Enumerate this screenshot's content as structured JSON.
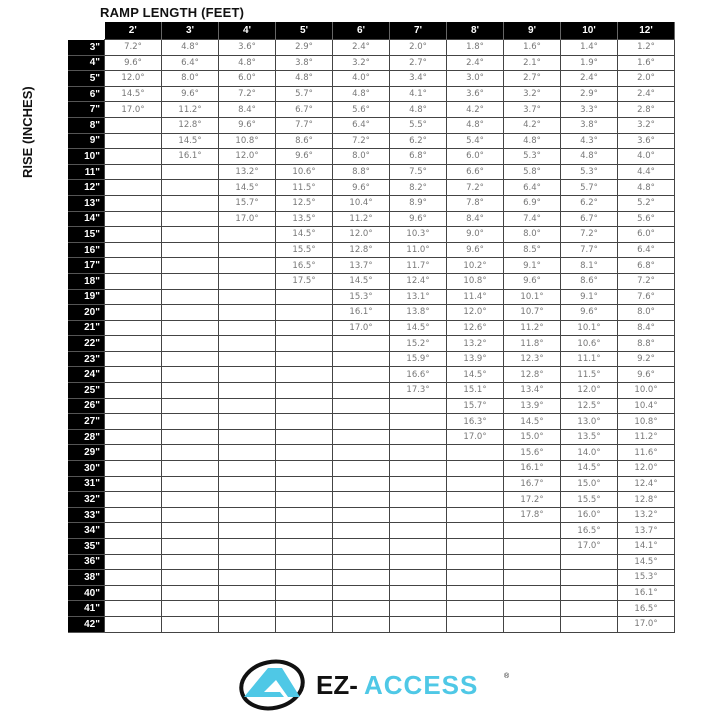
{
  "title": "RAMP LENGTH (FEET)",
  "ylabel": "RISE (INCHES)",
  "columns": [
    "2'",
    "3'",
    "4'",
    "5'",
    "6'",
    "7'",
    "8'",
    "9'",
    "10'",
    "12'"
  ],
  "rows": [
    "3\"",
    "4\"",
    "5\"",
    "6\"",
    "7\"",
    "8\"",
    "9\"",
    "10\"",
    "11\"",
    "12\"",
    "13\"",
    "14\"",
    "15\"",
    "16\"",
    "17\"",
    "18\"",
    "19\"",
    "20\"",
    "21\"",
    "22\"",
    "23\"",
    "24\"",
    "25\"",
    "26\"",
    "27\"",
    "28\"",
    "29\"",
    "30\"",
    "31\"",
    "32\"",
    "33\"",
    "34\"",
    "35\"",
    "36\"",
    "38\"",
    "40\"",
    "41\"",
    "42\""
  ],
  "values_by_column": [
    [
      "7.2°",
      "9.6°",
      "12.0°",
      "14.5°",
      "17.0°"
    ],
    [
      "4.8°",
      "6.4°",
      "8.0°",
      "9.6°",
      "11.2°",
      "12.8°",
      "14.5°",
      "16.1°"
    ],
    [
      "3.6°",
      "4.8°",
      "6.0°",
      "7.2°",
      "8.4°",
      "9.6°",
      "10.8°",
      "12.0°",
      "13.2°",
      "14.5°",
      "15.7°",
      "17.0°"
    ],
    [
      "2.9°",
      "3.8°",
      "4.8°",
      "5.7°",
      "6.7°",
      "7.7°",
      "8.6°",
      "9.6°",
      "10.6°",
      "11.5°",
      "12.5°",
      "13.5°",
      "14.5°",
      "15.5°",
      "16.5°",
      "17.5°"
    ],
    [
      "2.4°",
      "3.2°",
      "4.0°",
      "4.8°",
      "5.6°",
      "6.4°",
      "7.2°",
      "8.0°",
      "8.8°",
      "9.6°",
      "10.4°",
      "11.2°",
      "12.0°",
      "12.8°",
      "13.7°",
      "14.5°",
      "15.3°",
      "16.1°",
      "17.0°"
    ],
    [
      "2.0°",
      "2.7°",
      "3.4°",
      "4.1°",
      "4.8°",
      "5.5°",
      "6.2°",
      "6.8°",
      "7.5°",
      "8.2°",
      "8.9°",
      "9.6°",
      "10.3°",
      "11.0°",
      "11.7°",
      "12.4°",
      "13.1°",
      "13.8°",
      "14.5°",
      "15.2°",
      "15.9°",
      "16.6°",
      "17.3°"
    ],
    [
      "1.8°",
      "2.4°",
      "3.0°",
      "3.6°",
      "4.2°",
      "4.8°",
      "5.4°",
      "6.0°",
      "6.6°",
      "7.2°",
      "7.8°",
      "8.4°",
      "9.0°",
      "9.6°",
      "10.2°",
      "10.8°",
      "11.4°",
      "12.0°",
      "12.6°",
      "13.2°",
      "13.9°",
      "14.5°",
      "15.1°",
      "15.7°",
      "16.3°",
      "17.0°"
    ],
    [
      "1.6°",
      "2.1°",
      "2.7°",
      "3.2°",
      "3.7°",
      "4.2°",
      "4.8°",
      "5.3°",
      "5.8°",
      "6.4°",
      "6.9°",
      "7.4°",
      "8.0°",
      "8.5°",
      "9.1°",
      "9.6°",
      "10.1°",
      "10.7°",
      "11.2°",
      "11.8°",
      "12.3°",
      "12.8°",
      "13.4°",
      "13.9°",
      "14.5°",
      "15.0°",
      "15.6°",
      "16.1°",
      "16.7°",
      "17.2°",
      "17.8°"
    ],
    [
      "1.4°",
      "1.9°",
      "2.4°",
      "2.9°",
      "3.3°",
      "3.8°",
      "4.3°",
      "4.8°",
      "5.3°",
      "5.7°",
      "6.2°",
      "6.7°",
      "7.2°",
      "7.7°",
      "8.1°",
      "8.6°",
      "9.1°",
      "9.6°",
      "10.1°",
      "10.6°",
      "11.1°",
      "11.5°",
      "12.0°",
      "12.5°",
      "13.0°",
      "13.5°",
      "14.0°",
      "14.5°",
      "15.0°",
      "15.5°",
      "16.0°",
      "16.5°",
      "17.0°"
    ],
    [
      "1.2°",
      "1.6°",
      "2.0°",
      "2.4°",
      "2.8°",
      "3.2°",
      "3.6°",
      "4.0°",
      "4.4°",
      "4.8°",
      "5.2°",
      "5.6°",
      "6.0°",
      "6.4°",
      "6.8°",
      "7.2°",
      "7.6°",
      "8.0°",
      "8.4°",
      "8.8°",
      "9.2°",
      "9.6°",
      "10.0°",
      "10.4°",
      "10.8°",
      "11.2°",
      "11.6°",
      "12.0°",
      "12.4°",
      "12.8°",
      "13.2°",
      "13.7°",
      "14.1°",
      "14.5°",
      "15.3°",
      "16.1°",
      "16.5°",
      "17.0°"
    ]
  ],
  "logo": {
    "text_dark": "EZ-",
    "text_accent": "ACCESS",
    "mark": "®",
    "accent_color": "#4fc8e6",
    "dark_color": "#111111"
  }
}
